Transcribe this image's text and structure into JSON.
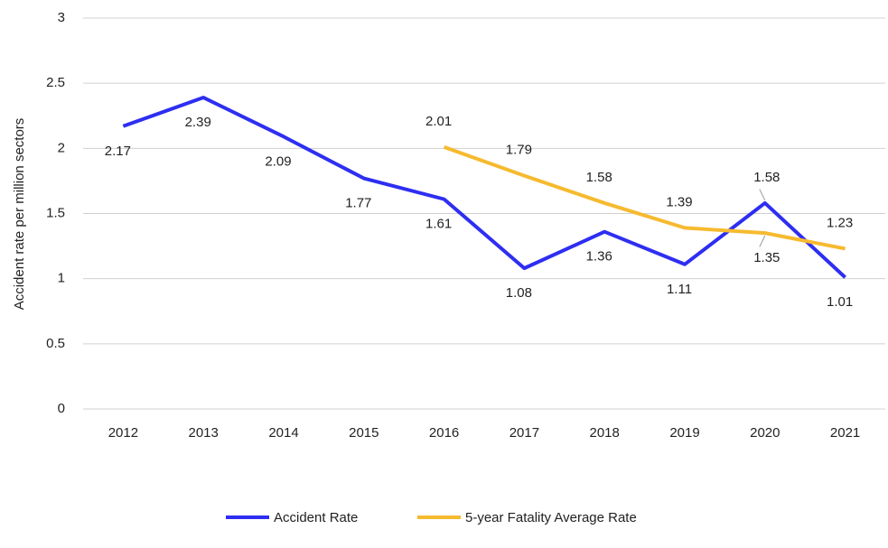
{
  "chart_data": {
    "type": "line",
    "y_label": "Accident rate per million sectors",
    "categories": [
      "2012",
      "2013",
      "2014",
      "2015",
      "2016",
      "2017",
      "2018",
      "2019",
      "2020",
      "2021"
    ],
    "series": [
      {
        "name": "Accident Rate",
        "color": "#2e2ef2",
        "values": [
          2.17,
          2.39,
          2.09,
          1.77,
          1.61,
          1.08,
          1.36,
          1.11,
          1.58,
          1.01
        ]
      },
      {
        "name": "5-year Fatality Average Rate",
        "color": "#f6ba2f",
        "values": [
          null,
          null,
          null,
          null,
          2.01,
          1.79,
          1.58,
          1.39,
          1.35,
          1.23
        ]
      }
    ],
    "ylim": [
      0,
      3
    ],
    "yticks": [
      0,
      0.5,
      1,
      1.5,
      2,
      2.5,
      3
    ],
    "grid": true,
    "legend": "bottom"
  }
}
